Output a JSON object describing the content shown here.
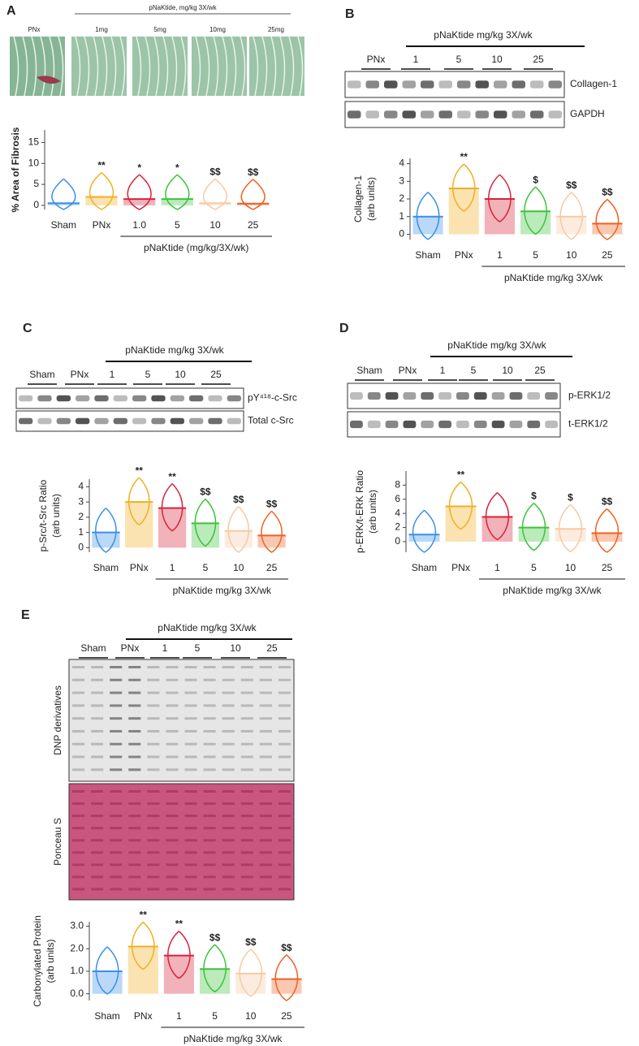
{
  "chart_data": [
    {
      "type": "violin",
      "panel": "A",
      "ylabel": [
        "% Area of Fibrosis"
      ],
      "images": {
        "header": "pNaKtide, mg/kg 3X/wk",
        "labels": [
          "PNx",
          "1mg",
          "5mg",
          "10mg",
          "25mg"
        ]
      },
      "categories": [
        "Sham",
        "PNx",
        "1.0",
        "5",
        "10",
        "25"
      ],
      "colors": [
        "#3a8fe8",
        "#f0b020",
        "#d8233a",
        "#3cc23c",
        "#f7c9a3",
        "#f06020"
      ],
      "values": [
        0.5,
        2,
        1.5,
        1.5,
        0.5,
        0.4
      ],
      "annotations": [
        null,
        "**",
        "*",
        "*",
        "$$",
        "$$"
      ],
      "group_label": "pNaKtide (mg/kg/3X/wk)",
      "ylim": [
        -1,
        18
      ],
      "yticks": [
        0,
        5,
        10,
        15
      ]
    },
    {
      "type": "violin",
      "panel": "B",
      "ylabel": [
        "Collagen-1",
        "(arb units)"
      ],
      "blot": {
        "header": "pNaKtide mg/kg 3X/wk",
        "lanes": [
          "PNx",
          "1",
          "5",
          "10",
          "25"
        ],
        "rows": [
          "Collagen-1",
          "GAPDH"
        ]
      },
      "categories": [
        "Sham",
        "PNx",
        "1",
        "5",
        "10",
        "25"
      ],
      "colors": [
        "#3a8fe8",
        "#f0b020",
        "#d8233a",
        "#3cc23c",
        "#f7c9a3",
        "#f06020"
      ],
      "values": [
        1.0,
        2.6,
        2.0,
        1.3,
        1.0,
        0.6
      ],
      "annotations": [
        null,
        "**",
        null,
        "$",
        "$$",
        "$$"
      ],
      "group_label": "pNaKtide mg/kg 3X/wk",
      "ylim": [
        -0.3,
        4.3
      ],
      "yticks": [
        0,
        1,
        2,
        3,
        4
      ]
    },
    {
      "type": "violin",
      "panel": "C",
      "ylabel": [
        "p-Src/t-Src Ratio",
        "(arb units)"
      ],
      "blot": {
        "header": "pNaKtide mg/kg 3X/wk",
        "lanes": [
          "Sham",
          "PNx",
          "1",
          "5",
          "10",
          "25"
        ],
        "rows": [
          "pY⁴¹⁸-c-Src",
          "Total c-Src"
        ]
      },
      "categories": [
        "Sham",
        "PNx",
        "1",
        "5",
        "10",
        "25"
      ],
      "colors": [
        "#3a8fe8",
        "#f0b020",
        "#d8233a",
        "#3cc23c",
        "#f7c9a3",
        "#f06020"
      ],
      "values": [
        1.0,
        3.0,
        2.6,
        1.6,
        1.1,
        0.8
      ],
      "annotations": [
        null,
        "**",
        "**",
        "$$",
        "$$",
        "$$"
      ],
      "group_label": "pNaKtide mg/kg 3X/wk",
      "ylim": [
        -0.3,
        4.5
      ],
      "yticks": [
        0,
        1,
        2,
        3,
        4
      ]
    },
    {
      "type": "violin",
      "panel": "D",
      "ylabel": [
        "p-ERK/t-ERK Ratio",
        "(arb units)"
      ],
      "blot": {
        "header": "pNaKtide mg/kg 3X/wk",
        "lanes": [
          "Sham",
          "PNx",
          "1",
          "5",
          "10",
          "25"
        ],
        "rows": [
          "p-ERK1/2",
          "t-ERK1/2"
        ]
      },
      "categories": [
        "Sham",
        "PNx",
        "1",
        "5",
        "10",
        "25"
      ],
      "colors": [
        "#3a8fe8",
        "#f0b020",
        "#d8233a",
        "#3cc23c",
        "#f7c9a3",
        "#f06020"
      ],
      "values": [
        1.0,
        5.0,
        3.5,
        2.0,
        1.8,
        1.2
      ],
      "annotations": [
        null,
        "**",
        null,
        "$",
        "$",
        "$$"
      ],
      "group_label": "pNaKtide mg/kg 3X/wk",
      "ylim": [
        -1.5,
        10
      ],
      "yticks": [
        0,
        2,
        4,
        6,
        8
      ]
    },
    {
      "type": "violin",
      "panel": "E",
      "ylabel": [
        "Carbonylated Protein",
        "(arb units)"
      ],
      "blot": {
        "header": "pNaKtide mg/kg 3X/wk",
        "lanes": [
          "Sham",
          "PNx",
          "1",
          "5",
          "10",
          "25"
        ],
        "rows": [
          "DNP derivatives",
          "Ponceau S"
        ]
      },
      "categories": [
        "Sham",
        "PNx",
        "1",
        "5",
        "10",
        "25"
      ],
      "colors": [
        "#3a8fe8",
        "#f0b020",
        "#d8233a",
        "#3cc23c",
        "#f7c9a3",
        "#f06020"
      ],
      "values": [
        1.0,
        2.1,
        1.7,
        1.1,
        0.9,
        0.65
      ],
      "annotations": [
        null,
        "**",
        "**",
        "$$",
        "$$",
        "$$"
      ],
      "group_label": "pNaKtide mg/kg 3X/wk",
      "ylim": [
        -0.3,
        3.2
      ],
      "yticks": [
        {
          "value": 0,
          "label": "0.0"
        },
        {
          "value": 1,
          "label": "1.0"
        },
        {
          "value": 2,
          "label": "2.0"
        },
        {
          "value": 3,
          "label": "3.0"
        }
      ]
    }
  ]
}
